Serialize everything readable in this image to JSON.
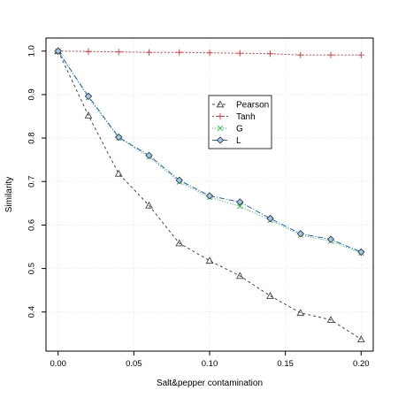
{
  "chart_data": {
    "type": "line",
    "title": "",
    "xlabel": "Salt&pepper contamination",
    "ylabel": "Similarity",
    "xlim": [
      -0.008,
      0.208
    ],
    "ylim": [
      0.31,
      1.03
    ],
    "x_ticks": [
      0.0,
      0.05,
      0.1,
      0.15,
      0.2
    ],
    "x_tick_labels": [
      "0.00",
      "0.05",
      "0.10",
      "0.15",
      "0.20"
    ],
    "y_ticks": [
      0.4,
      0.5,
      0.6,
      0.7,
      0.8,
      0.9,
      1.0
    ],
    "y_tick_labels": [
      "0.4",
      "0.5",
      "0.6",
      "0.7",
      "0.8",
      "0.9",
      "1.0"
    ],
    "grid": true,
    "legend_position": "upper-right-center",
    "x": [
      0.0,
      0.02,
      0.04,
      0.06,
      0.08,
      0.1,
      0.12,
      0.14,
      0.16,
      0.18,
      0.2
    ],
    "series": [
      {
        "name": "Pearson",
        "marker": "triangle",
        "color": "#444444",
        "dash": "3,3",
        "values": [
          1.0,
          0.852,
          0.718,
          0.645,
          0.558,
          0.518,
          0.483,
          0.437,
          0.398,
          0.382,
          0.337
        ]
      },
      {
        "name": "Tanh",
        "marker": "plus",
        "color": "#e0303a",
        "dash": "2,2",
        "values": [
          1.0,
          0.999,
          0.998,
          0.997,
          0.997,
          0.996,
          0.995,
          0.994,
          0.991,
          0.991,
          0.991
        ]
      },
      {
        "name": "G",
        "marker": "cross",
        "color": "#2db84a",
        "dash": "1,2",
        "values": [
          1.0,
          0.893,
          0.8,
          0.757,
          0.699,
          0.664,
          0.643,
          0.611,
          0.577,
          0.563,
          0.536
        ]
      },
      {
        "name": "L",
        "marker": "diamond",
        "color": "#1f5fd6",
        "dash": "6,2,1,2",
        "values": [
          1.0,
          0.896,
          0.802,
          0.76,
          0.703,
          0.667,
          0.653,
          0.615,
          0.58,
          0.567,
          0.538
        ]
      }
    ]
  }
}
